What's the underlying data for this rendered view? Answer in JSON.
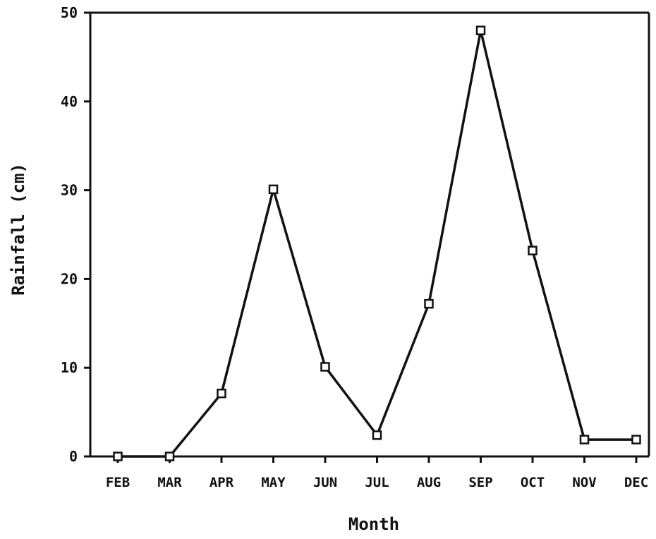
{
  "chart_data": {
    "type": "line",
    "title": "",
    "xlabel": "Month",
    "ylabel": "Rainfall (cm)",
    "categories": [
      "FEB",
      "MAR",
      "APR",
      "MAY",
      "JUN",
      "JUL",
      "AUG",
      "SEP",
      "OCT",
      "NOV",
      "DEC"
    ],
    "series": [
      {
        "values": [
          0,
          0,
          7.1,
          30.1,
          10.1,
          2.4,
          17.2,
          48.0,
          23.2,
          1.9,
          1.9
        ],
        "marker": "square",
        "color": "#111111"
      }
    ],
    "ylim": [
      0,
      50
    ],
    "yticks": [
      0,
      10,
      20,
      30,
      40,
      50
    ],
    "grid": false,
    "legend": "none"
  }
}
